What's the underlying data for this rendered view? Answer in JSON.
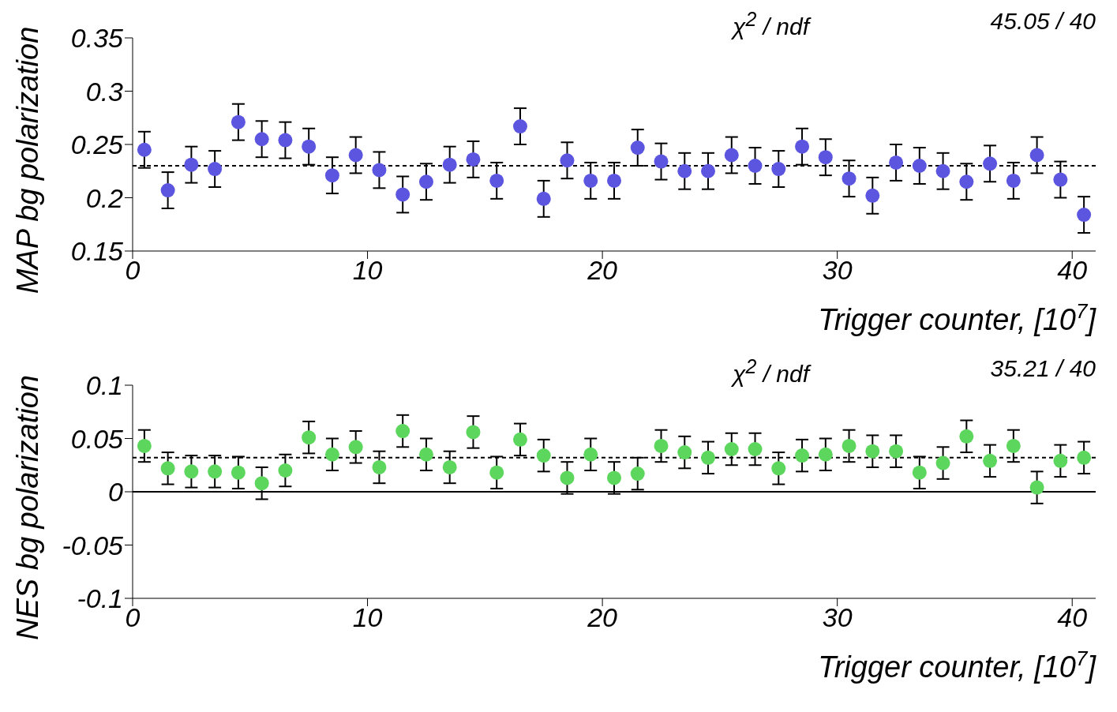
{
  "chart_data": [
    {
      "type": "scatter",
      "ylabel": "MAP bg polarization",
      "xlabel": "Trigger counter, [10$^{7}$]",
      "annotations": [
        "χ$^{2}$ / ndf",
        "45.05 / 40"
      ],
      "marker": "circle",
      "xlim": [
        0,
        41
      ],
      "xticks": [
        0,
        10,
        20,
        30,
        40
      ],
      "ylim": [
        0.15,
        0.35
      ],
      "yticks": [
        {
          "value": 0.15,
          "label": "0.15"
        },
        {
          "value": 0.2,
          "label": "0.2"
        },
        {
          "value": 0.25,
          "label": "0.25"
        },
        {
          "value": 0.3,
          "label": "0.3"
        },
        {
          "value": 0.35,
          "label": "0.35"
        }
      ],
      "ref_lines": [
        {
          "axis": "y",
          "value": 0.23,
          "color": "#000000",
          "line_style": "dashed"
        }
      ],
      "series": [
        {
          "color": "#5b55e0",
          "x": [
            0.5,
            1.5,
            2.5,
            3.5,
            4.5,
            5.5,
            6.5,
            7.5,
            8.5,
            9.5,
            10.5,
            11.5,
            12.5,
            13.5,
            14.5,
            15.5,
            16.5,
            17.5,
            18.5,
            19.5,
            20.5,
            21.5,
            22.5,
            23.5,
            24.5,
            25.5,
            26.5,
            27.5,
            28.5,
            29.5,
            30.5,
            31.5,
            32.5,
            33.5,
            34.5,
            35.5,
            36.5,
            37.5,
            38.5,
            39.5,
            40.5
          ],
          "values": [
            0.245,
            0.207,
            0.231,
            0.227,
            0.271,
            0.255,
            0.254,
            0.248,
            0.221,
            0.24,
            0.226,
            0.203,
            0.215,
            0.231,
            0.236,
            0.216,
            0.267,
            0.199,
            0.235,
            0.216,
            0.216,
            0.247,
            0.234,
            0.225,
            0.225,
            0.24,
            0.23,
            0.227,
            0.248,
            0.238,
            0.218,
            0.202,
            0.233,
            0.23,
            0.225,
            0.215,
            0.232,
            0.216,
            0.24,
            0.217,
            0.184
          ],
          "errors": [
            0.017,
            0.017,
            0.017,
            0.017,
            0.017,
            0.017,
            0.017,
            0.017,
            0.017,
            0.017,
            0.017,
            0.017,
            0.017,
            0.017,
            0.017,
            0.017,
            0.017,
            0.017,
            0.017,
            0.017,
            0.017,
            0.017,
            0.017,
            0.017,
            0.017,
            0.017,
            0.017,
            0.017,
            0.017,
            0.017,
            0.017,
            0.017,
            0.017,
            0.017,
            0.017,
            0.017,
            0.017,
            0.017,
            0.017,
            0.017,
            0.017
          ]
        }
      ]
    },
    {
      "type": "scatter",
      "ylabel": "NES bg polarization",
      "xlabel": "Trigger counter, [10$^{7}$]",
      "annotations": [
        "χ$^{2}$ / ndf",
        "35.21 / 40"
      ],
      "marker": "circle",
      "xlim": [
        0,
        41
      ],
      "xticks": [
        0,
        10,
        20,
        30,
        40
      ],
      "ylim": [
        -0.1,
        0.1
      ],
      "yticks": [
        {
          "value": -0.1,
          "label": "-0.1"
        },
        {
          "value": -0.05,
          "label": "-0.05"
        },
        {
          "value": 0,
          "label": "0"
        },
        {
          "value": 0.05,
          "label": "0.05"
        },
        {
          "value": 0.1,
          "label": "0.1"
        }
      ],
      "ref_lines": [
        {
          "axis": "y",
          "value": 0.032,
          "color": "#000000",
          "line_style": "dashed"
        },
        {
          "axis": "y",
          "value": 0,
          "color": "#000000",
          "line_style": "solid"
        }
      ],
      "series": [
        {
          "color": "#5cd65c",
          "x": [
            0.5,
            1.5,
            2.5,
            3.5,
            4.5,
            5.5,
            6.5,
            7.5,
            8.5,
            9.5,
            10.5,
            11.5,
            12.5,
            13.5,
            14.5,
            15.5,
            16.5,
            17.5,
            18.5,
            19.5,
            20.5,
            21.5,
            22.5,
            23.5,
            24.5,
            25.5,
            26.5,
            27.5,
            28.5,
            29.5,
            30.5,
            31.5,
            32.5,
            33.5,
            34.5,
            35.5,
            36.5,
            37.5,
            38.5,
            39.5,
            40.5
          ],
          "values": [
            0.043,
            0.022,
            0.019,
            0.019,
            0.018,
            0.008,
            0.02,
            0.051,
            0.035,
            0.042,
            0.023,
            0.057,
            0.035,
            0.023,
            0.056,
            0.018,
            0.049,
            0.034,
            0.013,
            0.035,
            0.013,
            0.017,
            0.043,
            0.037,
            0.032,
            0.04,
            0.04,
            0.022,
            0.034,
            0.035,
            0.043,
            0.038,
            0.038,
            0.018,
            0.027,
            0.052,
            0.029,
            0.043,
            0.004,
            0.029,
            0.032
          ],
          "errors": [
            0.015,
            0.015,
            0.015,
            0.015,
            0.015,
            0.015,
            0.015,
            0.015,
            0.015,
            0.015,
            0.015,
            0.015,
            0.015,
            0.015,
            0.015,
            0.015,
            0.015,
            0.015,
            0.015,
            0.015,
            0.015,
            0.015,
            0.015,
            0.015,
            0.015,
            0.015,
            0.015,
            0.015,
            0.015,
            0.015,
            0.015,
            0.015,
            0.015,
            0.015,
            0.015,
            0.015,
            0.015,
            0.015,
            0.015,
            0.015,
            0.015
          ]
        }
      ]
    }
  ]
}
